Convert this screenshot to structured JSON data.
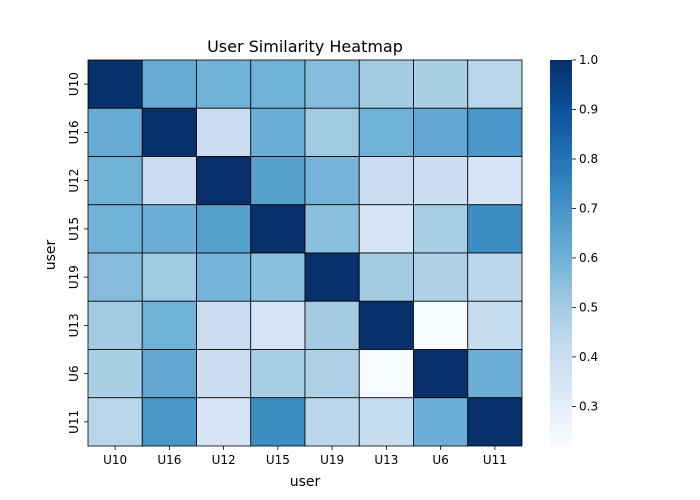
{
  "chart_data": {
    "type": "heatmap",
    "title": "User Similarity Heatmap",
    "xlabel": "user",
    "ylabel": "user",
    "rows": [
      "U10",
      "U16",
      "U12",
      "U15",
      "U19",
      "U13",
      "U6",
      "U11"
    ],
    "cols": [
      "U10",
      "U16",
      "U12",
      "U15",
      "U19",
      "U13",
      "U6",
      "U11"
    ],
    "values": [
      [
        1.0,
        0.62,
        0.6,
        0.6,
        0.56,
        0.5,
        0.48,
        0.45
      ],
      [
        0.62,
        1.0,
        0.4,
        0.61,
        0.51,
        0.6,
        0.63,
        0.69
      ],
      [
        0.6,
        0.4,
        1.0,
        0.66,
        0.59,
        0.4,
        0.39,
        0.36
      ],
      [
        0.6,
        0.61,
        0.66,
        1.0,
        0.55,
        0.36,
        0.49,
        0.72
      ],
      [
        0.56,
        0.51,
        0.59,
        0.55,
        1.0,
        0.5,
        0.47,
        0.44
      ],
      [
        0.5,
        0.6,
        0.4,
        0.36,
        0.5,
        1.0,
        0.22,
        0.41
      ],
      [
        0.48,
        0.63,
        0.39,
        0.49,
        0.47,
        0.22,
        1.0,
        0.61
      ],
      [
        0.45,
        0.69,
        0.36,
        0.72,
        0.44,
        0.41,
        0.61,
        1.0
      ]
    ],
    "colorbar": {
      "colormap": "Blues",
      "vmin": 0.22,
      "vmax": 1.0,
      "ticks": [
        0.3,
        0.4,
        0.5,
        0.6,
        0.7,
        0.8,
        0.9,
        1.0
      ],
      "tick_labels": [
        "0.3",
        "0.4",
        "0.5",
        "0.6",
        "0.7",
        "0.8",
        "0.9",
        "1.0"
      ]
    },
    "cell_border_color": "#000000",
    "grid": false
  }
}
